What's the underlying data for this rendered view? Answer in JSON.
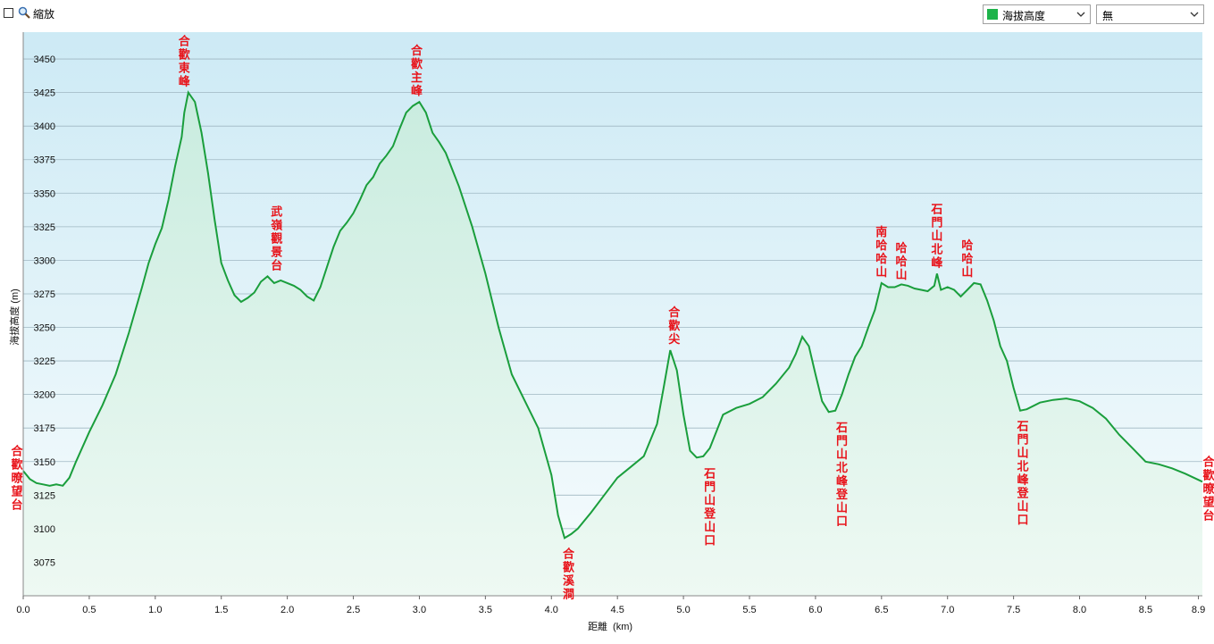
{
  "toolbar": {
    "zoom_label": "縮放",
    "series_select": {
      "value": "海拔高度",
      "color": "#1db34a"
    },
    "second_select": {
      "value": "無"
    }
  },
  "colors": {
    "line": "#1a9e3c",
    "fill_top": "#c9ecdf",
    "fill_bottom": "#eef9f3",
    "bg_top": "#cdeaf5",
    "bg_bottom": "#f7fcfd",
    "grid": "#9fb7c2",
    "annotation": "#e8141b"
  },
  "chart_data": {
    "type": "area",
    "title": "",
    "xlabel": "距離  (km)",
    "ylabel": "海拔高度 (m)",
    "xlim": [
      0,
      8.93
    ],
    "ylim": [
      3050,
      3470
    ],
    "x_ticks": [
      0.0,
      0.5,
      1.0,
      1.5,
      2.0,
      2.5,
      3.0,
      3.5,
      4.0,
      4.5,
      5.0,
      5.5,
      6.0,
      6.5,
      7.0,
      7.5,
      8.0,
      8.5,
      8.9
    ],
    "x_tick_labels": [
      "0.0",
      "0.5",
      "1.0",
      "1.5",
      "2.0",
      "2.5",
      "3.0",
      "3.5",
      "4.0",
      "4.5",
      "5.0",
      "5.5",
      "6.0",
      "6.5",
      "7.0",
      "7.5",
      "8.0",
      "8.5",
      "8.9"
    ],
    "y_ticks": [
      3075,
      3100,
      3125,
      3150,
      3175,
      3200,
      3225,
      3250,
      3275,
      3300,
      3325,
      3350,
      3375,
      3400,
      3425,
      3450
    ],
    "grid": true,
    "series": [
      {
        "name": "海拔高度",
        "x": [
          0.0,
          0.05,
          0.1,
          0.15,
          0.2,
          0.25,
          0.3,
          0.35,
          0.4,
          0.5,
          0.6,
          0.7,
          0.8,
          0.9,
          0.95,
          1.0,
          1.05,
          1.1,
          1.15,
          1.2,
          1.22,
          1.25,
          1.3,
          1.35,
          1.4,
          1.45,
          1.5,
          1.55,
          1.6,
          1.65,
          1.7,
          1.75,
          1.8,
          1.85,
          1.9,
          1.95,
          2.0,
          2.05,
          2.1,
          2.15,
          2.2,
          2.25,
          2.3,
          2.35,
          2.4,
          2.45,
          2.5,
          2.55,
          2.6,
          2.65,
          2.7,
          2.75,
          2.8,
          2.85,
          2.9,
          2.95,
          3.0,
          3.05,
          3.1,
          3.15,
          3.2,
          3.3,
          3.4,
          3.5,
          3.6,
          3.7,
          3.8,
          3.9,
          4.0,
          4.05,
          4.1,
          4.15,
          4.2,
          4.3,
          4.4,
          4.5,
          4.6,
          4.7,
          4.8,
          4.85,
          4.9,
          4.95,
          5.0,
          5.05,
          5.1,
          5.15,
          5.2,
          5.3,
          5.4,
          5.5,
          5.6,
          5.7,
          5.8,
          5.85,
          5.9,
          5.95,
          6.0,
          6.05,
          6.1,
          6.15,
          6.2,
          6.25,
          6.3,
          6.35,
          6.4,
          6.45,
          6.5,
          6.55,
          6.6,
          6.65,
          6.7,
          6.75,
          6.8,
          6.85,
          6.9,
          6.92,
          6.95,
          7.0,
          7.05,
          7.1,
          7.15,
          7.2,
          7.25,
          7.3,
          7.35,
          7.4,
          7.45,
          7.5,
          7.55,
          7.6,
          7.7,
          7.8,
          7.9,
          8.0,
          8.1,
          8.2,
          8.3,
          8.4,
          8.5,
          8.6,
          8.7,
          8.8,
          8.93
        ],
        "values": [
          3143,
          3137,
          3134,
          3133,
          3132,
          3133,
          3132,
          3138,
          3150,
          3172,
          3192,
          3215,
          3246,
          3280,
          3298,
          3312,
          3324,
          3345,
          3370,
          3392,
          3410,
          3425,
          3418,
          3395,
          3365,
          3330,
          3298,
          3285,
          3274,
          3269,
          3272,
          3276,
          3284,
          3288,
          3283,
          3285,
          3283,
          3281,
          3278,
          3273,
          3270,
          3280,
          3295,
          3310,
          3322,
          3328,
          3335,
          3345,
          3356,
          3362,
          3372,
          3378,
          3385,
          3398,
          3410,
          3415,
          3418,
          3410,
          3395,
          3388,
          3380,
          3355,
          3325,
          3290,
          3250,
          3215,
          3195,
          3175,
          3140,
          3110,
          3093,
          3096,
          3100,
          3112,
          3125,
          3138,
          3146,
          3154,
          3178,
          3205,
          3233,
          3218,
          3185,
          3158,
          3153,
          3154,
          3160,
          3185,
          3190,
          3193,
          3198,
          3208,
          3220,
          3230,
          3243,
          3236,
          3215,
          3195,
          3187,
          3188,
          3200,
          3215,
          3228,
          3236,
          3250,
          3263,
          3283,
          3280,
          3280,
          3282,
          3281,
          3279,
          3278,
          3277,
          3281,
          3290,
          3278,
          3280,
          3278,
          3273,
          3278,
          3283,
          3282,
          3270,
          3255,
          3236,
          3225,
          3205,
          3188,
          3189,
          3194,
          3196,
          3197,
          3195,
          3190,
          3182,
          3170,
          3160,
          3150,
          3148,
          3145,
          3141,
          3135
        ]
      }
    ],
    "annotations": [
      {
        "x": 0.0,
        "y": 3143,
        "text": "合歡暸望台",
        "pos": "left-edge"
      },
      {
        "x": 1.22,
        "y": 3425,
        "text": "合歡東峰",
        "pos": "above"
      },
      {
        "x": 1.92,
        "y": 3288,
        "text": "武嶺觀景台",
        "pos": "above"
      },
      {
        "x": 2.98,
        "y": 3418,
        "text": "合歡主峰",
        "pos": "above"
      },
      {
        "x": 4.13,
        "y": 3093,
        "text": "合歡溪澗",
        "pos": "below"
      },
      {
        "x": 4.93,
        "y": 3233,
        "text": "合歡尖",
        "pos": "above"
      },
      {
        "x": 5.2,
        "y": 3153,
        "text": "石門山登山口",
        "pos": "below"
      },
      {
        "x": 6.2,
        "y": 3187,
        "text": "石門山北峰登山口",
        "pos": "below"
      },
      {
        "x": 6.5,
        "y": 3283,
        "text": "南哈哈山",
        "pos": "above"
      },
      {
        "x": 6.65,
        "y": 3281,
        "text": "哈哈山",
        "pos": "above"
      },
      {
        "x": 6.92,
        "y": 3290,
        "text": "石門山北峰",
        "pos": "above"
      },
      {
        "x": 7.15,
        "y": 3283,
        "text": "哈哈山",
        "pos": "above"
      },
      {
        "x": 7.57,
        "y": 3188,
        "text": "石門山北峰登山口",
        "pos": "below"
      },
      {
        "x": 8.93,
        "y": 3135,
        "text": "合歡暸望台",
        "pos": "right-edge"
      }
    ]
  }
}
